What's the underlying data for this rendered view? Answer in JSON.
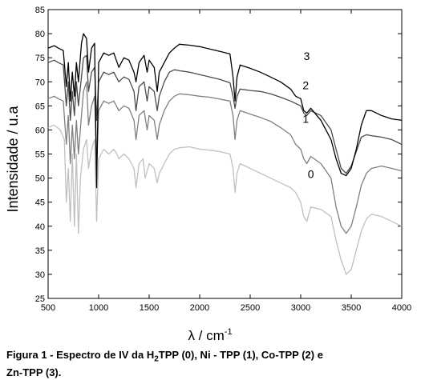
{
  "chart_data": {
    "type": "line",
    "xlabel": "λ / cm",
    "xlabel_superscript": "-1",
    "ylabel": "Intensidade / u.a",
    "xlim": [
      500,
      4000
    ],
    "ylim": [
      25,
      85
    ],
    "xticks": [
      500,
      1000,
      1500,
      2000,
      2500,
      3000,
      3500,
      4000
    ],
    "yticks": [
      25,
      30,
      35,
      40,
      45,
      50,
      55,
      60,
      65,
      70,
      75,
      80,
      85
    ],
    "grid": false,
    "legend": "none (series labelled inline)",
    "series": [
      {
        "name": "0",
        "color": "#c0c0c0",
        "points": [
          [
            500,
            60.5
          ],
          [
            560,
            61
          ],
          [
            620,
            60
          ],
          [
            660,
            58
          ],
          [
            680,
            45
          ],
          [
            700,
            52
          ],
          [
            720,
            41
          ],
          [
            740,
            55
          ],
          [
            760,
            40
          ],
          [
            780,
            55
          ],
          [
            800,
            38.5
          ],
          [
            820,
            50
          ],
          [
            850,
            56
          ],
          [
            880,
            58
          ],
          [
            900,
            52
          ],
          [
            930,
            56
          ],
          [
            960,
            58
          ],
          [
            980,
            41
          ],
          [
            1000,
            54
          ],
          [
            1050,
            56
          ],
          [
            1100,
            55
          ],
          [
            1150,
            56
          ],
          [
            1180,
            55
          ],
          [
            1200,
            54
          ],
          [
            1250,
            55
          ],
          [
            1300,
            54
          ],
          [
            1350,
            52
          ],
          [
            1370,
            48
          ],
          [
            1400,
            53
          ],
          [
            1440,
            54
          ],
          [
            1460,
            50
          ],
          [
            1500,
            53
          ],
          [
            1550,
            52
          ],
          [
            1580,
            49
          ],
          [
            1600,
            51
          ],
          [
            1650,
            53
          ],
          [
            1700,
            55
          ],
          [
            1750,
            56
          ],
          [
            1800,
            56.3
          ],
          [
            1900,
            56.5
          ],
          [
            2000,
            56
          ],
          [
            2100,
            55.8
          ],
          [
            2200,
            55.5
          ],
          [
            2300,
            55
          ],
          [
            2330,
            52
          ],
          [
            2350,
            47
          ],
          [
            2370,
            51
          ],
          [
            2400,
            53
          ],
          [
            2500,
            52
          ],
          [
            2600,
            51
          ],
          [
            2700,
            50
          ],
          [
            2800,
            49
          ],
          [
            2900,
            48
          ],
          [
            2950,
            47
          ],
          [
            3000,
            45
          ],
          [
            3030,
            42
          ],
          [
            3060,
            41
          ],
          [
            3100,
            44
          ],
          [
            3200,
            43.5
          ],
          [
            3300,
            42
          ],
          [
            3350,
            37
          ],
          [
            3400,
            33
          ],
          [
            3450,
            30
          ],
          [
            3500,
            31
          ],
          [
            3550,
            35
          ],
          [
            3600,
            39
          ],
          [
            3650,
            41.5
          ],
          [
            3700,
            42.5
          ],
          [
            3800,
            42
          ],
          [
            3900,
            41
          ],
          [
            4000,
            40
          ]
        ]
      },
      {
        "name": "1",
        "color": "#7f7f7f",
        "points": [
          [
            500,
            66.5
          ],
          [
            560,
            67
          ],
          [
            600,
            66.5
          ],
          [
            650,
            66
          ],
          [
            680,
            57
          ],
          [
            700,
            63
          ],
          [
            720,
            53
          ],
          [
            740,
            61
          ],
          [
            760,
            54
          ],
          [
            780,
            62
          ],
          [
            800,
            55
          ],
          [
            830,
            63
          ],
          [
            850,
            68
          ],
          [
            880,
            70
          ],
          [
            900,
            61
          ],
          [
            930,
            65
          ],
          [
            960,
            67
          ],
          [
            980,
            52
          ],
          [
            1000,
            64
          ],
          [
            1050,
            66
          ],
          [
            1100,
            65.5
          ],
          [
            1150,
            66
          ],
          [
            1200,
            64
          ],
          [
            1250,
            65
          ],
          [
            1300,
            64.5
          ],
          [
            1350,
            62
          ],
          [
            1370,
            58
          ],
          [
            1400,
            63
          ],
          [
            1450,
            64
          ],
          [
            1480,
            60
          ],
          [
            1500,
            63
          ],
          [
            1550,
            62
          ],
          [
            1580,
            58
          ],
          [
            1600,
            61
          ],
          [
            1650,
            64
          ],
          [
            1700,
            66
          ],
          [
            1750,
            67
          ],
          [
            1800,
            67.5
          ],
          [
            1900,
            67.3
          ],
          [
            2000,
            67
          ],
          [
            2100,
            66.8
          ],
          [
            2200,
            66.4
          ],
          [
            2300,
            66
          ],
          [
            2330,
            63
          ],
          [
            2350,
            58
          ],
          [
            2370,
            62
          ],
          [
            2400,
            64
          ],
          [
            2500,
            63.3
          ],
          [
            2600,
            62.6
          ],
          [
            2700,
            61.8
          ],
          [
            2800,
            60.5
          ],
          [
            2900,
            59
          ],
          [
            2950,
            57
          ],
          [
            3000,
            56
          ],
          [
            3030,
            54
          ],
          [
            3060,
            53
          ],
          [
            3100,
            54.5
          ],
          [
            3200,
            53
          ],
          [
            3300,
            50
          ],
          [
            3350,
            44
          ],
          [
            3400,
            40
          ],
          [
            3450,
            38.5
          ],
          [
            3500,
            40
          ],
          [
            3550,
            44
          ],
          [
            3600,
            48.5
          ],
          [
            3650,
            51
          ],
          [
            3700,
            52
          ],
          [
            3800,
            52.5
          ],
          [
            3900,
            52
          ],
          [
            4000,
            51.5
          ]
        ]
      },
      {
        "name": "2",
        "color": "#4a4a4a",
        "points": [
          [
            500,
            74
          ],
          [
            560,
            74.5
          ],
          [
            600,
            74
          ],
          [
            650,
            73.5
          ],
          [
            680,
            65
          ],
          [
            700,
            70
          ],
          [
            720,
            62
          ],
          [
            740,
            68
          ],
          [
            760,
            63
          ],
          [
            780,
            70
          ],
          [
            800,
            65
          ],
          [
            830,
            71
          ],
          [
            850,
            75
          ],
          [
            880,
            75.5
          ],
          [
            900,
            68
          ],
          [
            930,
            72
          ],
          [
            960,
            73
          ],
          [
            980,
            62
          ],
          [
            1000,
            70
          ],
          [
            1050,
            72
          ],
          [
            1100,
            71.5
          ],
          [
            1150,
            72
          ],
          [
            1200,
            70
          ],
          [
            1250,
            71
          ],
          [
            1300,
            70.5
          ],
          [
            1350,
            68
          ],
          [
            1370,
            64
          ],
          [
            1400,
            69
          ],
          [
            1450,
            70
          ],
          [
            1480,
            66
          ],
          [
            1500,
            69
          ],
          [
            1550,
            68
          ],
          [
            1580,
            64
          ],
          [
            1600,
            67
          ],
          [
            1650,
            70
          ],
          [
            1700,
            72
          ],
          [
            1750,
            72.5
          ],
          [
            1800,
            72.3
          ],
          [
            1900,
            72
          ],
          [
            2000,
            71.5
          ],
          [
            2100,
            71
          ],
          [
            2200,
            70.5
          ],
          [
            2300,
            69.8
          ],
          [
            2330,
            67
          ],
          [
            2350,
            64.5
          ],
          [
            2370,
            67
          ],
          [
            2400,
            68.5
          ],
          [
            2500,
            68.2
          ],
          [
            2600,
            68
          ],
          [
            2700,
            67.5
          ],
          [
            2800,
            66.8
          ],
          [
            2900,
            66
          ],
          [
            2950,
            65.5
          ],
          [
            3000,
            65
          ],
          [
            3030,
            63.5
          ],
          [
            3060,
            63
          ],
          [
            3100,
            64
          ],
          [
            3200,
            63
          ],
          [
            3300,
            60
          ],
          [
            3350,
            56
          ],
          [
            3400,
            52
          ],
          [
            3450,
            51
          ],
          [
            3500,
            52.5
          ],
          [
            3550,
            55.5
          ],
          [
            3600,
            58.5
          ],
          [
            3650,
            59
          ],
          [
            3700,
            58.8
          ],
          [
            3800,
            58.5
          ],
          [
            3900,
            58
          ],
          [
            4000,
            57
          ]
        ]
      },
      {
        "name": "3",
        "color": "#000000",
        "points": [
          [
            500,
            77
          ],
          [
            560,
            77.5
          ],
          [
            600,
            77
          ],
          [
            650,
            76.5
          ],
          [
            680,
            69
          ],
          [
            700,
            74
          ],
          [
            720,
            66
          ],
          [
            740,
            72
          ],
          [
            760,
            67
          ],
          [
            780,
            74
          ],
          [
            800,
            70
          ],
          [
            830,
            78
          ],
          [
            850,
            80
          ],
          [
            880,
            79
          ],
          [
            900,
            72
          ],
          [
            930,
            77
          ],
          [
            960,
            78
          ],
          [
            980,
            48
          ],
          [
            1000,
            74
          ],
          [
            1050,
            76
          ],
          [
            1100,
            75.5
          ],
          [
            1150,
            76
          ],
          [
            1200,
            73
          ],
          [
            1250,
            75
          ],
          [
            1300,
            74.5
          ],
          [
            1350,
            72
          ],
          [
            1370,
            70
          ],
          [
            1400,
            74
          ],
          [
            1450,
            75.5
          ],
          [
            1480,
            72
          ],
          [
            1500,
            74.5
          ],
          [
            1550,
            73
          ],
          [
            1580,
            68
          ],
          [
            1600,
            72
          ],
          [
            1650,
            74
          ],
          [
            1700,
            76
          ],
          [
            1750,
            77
          ],
          [
            1800,
            77.8
          ],
          [
            1900,
            77.6
          ],
          [
            2000,
            77.3
          ],
          [
            2100,
            76.8
          ],
          [
            2200,
            76.3
          ],
          [
            2300,
            75.8
          ],
          [
            2330,
            71
          ],
          [
            2350,
            66
          ],
          [
            2370,
            71
          ],
          [
            2400,
            73.5
          ],
          [
            2500,
            72.8
          ],
          [
            2600,
            72
          ],
          [
            2700,
            71
          ],
          [
            2800,
            70
          ],
          [
            2900,
            68.5
          ],
          [
            2950,
            67
          ],
          [
            3000,
            66.5
          ],
          [
            3030,
            64
          ],
          [
            3060,
            63.5
          ],
          [
            3100,
            64.5
          ],
          [
            3200,
            62
          ],
          [
            3300,
            58
          ],
          [
            3350,
            54
          ],
          [
            3400,
            51
          ],
          [
            3450,
            50.5
          ],
          [
            3500,
            52
          ],
          [
            3550,
            56
          ],
          [
            3600,
            61
          ],
          [
            3650,
            64
          ],
          [
            3700,
            64
          ],
          [
            3800,
            63
          ],
          [
            3900,
            62.3
          ],
          [
            4000,
            62
          ]
        ]
      }
    ],
    "annotations": [
      {
        "text": "0",
        "x": 3100,
        "y": 50
      },
      {
        "text": "1",
        "x": 3050,
        "y": 61.5
      },
      {
        "text": "2",
        "x": 3050,
        "y": 68.5
      },
      {
        "text": "3",
        "x": 3060,
        "y": 74.5
      }
    ]
  },
  "caption": {
    "line1_prefix": "Figura 1 - Espectro de IV da H",
    "line1_sub": "2",
    "line1_suffix": "TPP (0), Ni - TPP (1), Co-TPP (2) e",
    "line2": "Zn-TPP (3)."
  }
}
